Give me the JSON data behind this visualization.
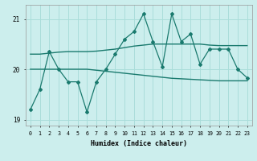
{
  "xlabel": "Humidex (Indice chaleur)",
  "background_color": "#cceeed",
  "grid_color": "#aaddda",
  "line_color": "#1a7a6e",
  "x": [
    0,
    1,
    2,
    3,
    4,
    5,
    6,
    7,
    8,
    9,
    10,
    11,
    12,
    13,
    14,
    15,
    16,
    17,
    18,
    19,
    20,
    21,
    22,
    23
  ],
  "y_main": [
    19.2,
    19.6,
    20.35,
    20.0,
    19.75,
    19.75,
    19.15,
    19.75,
    20.0,
    20.3,
    20.6,
    20.75,
    21.1,
    20.55,
    20.05,
    21.1,
    20.55,
    20.7,
    20.1,
    20.4,
    20.4,
    20.4,
    20.0,
    19.83
  ],
  "y_smooth1": [
    20.3,
    20.3,
    20.32,
    20.34,
    20.35,
    20.35,
    20.35,
    20.36,
    20.38,
    20.4,
    20.43,
    20.46,
    20.48,
    20.5,
    20.5,
    20.5,
    20.5,
    20.5,
    20.5,
    20.48,
    20.47,
    20.47,
    20.47,
    20.47
  ],
  "y_smooth2": [
    20.0,
    20.0,
    20.0,
    20.0,
    20.0,
    20.0,
    20.0,
    19.98,
    19.96,
    19.94,
    19.92,
    19.9,
    19.88,
    19.86,
    19.84,
    19.82,
    19.81,
    19.8,
    19.79,
    19.78,
    19.77,
    19.77,
    19.77,
    19.77
  ],
  "ylim": [
    18.88,
    21.28
  ],
  "yticks": [
    19,
    20,
    21
  ],
  "xticks": [
    0,
    1,
    2,
    3,
    4,
    5,
    6,
    7,
    8,
    9,
    10,
    11,
    12,
    13,
    14,
    15,
    16,
    17,
    18,
    19,
    20,
    21,
    22,
    23
  ]
}
